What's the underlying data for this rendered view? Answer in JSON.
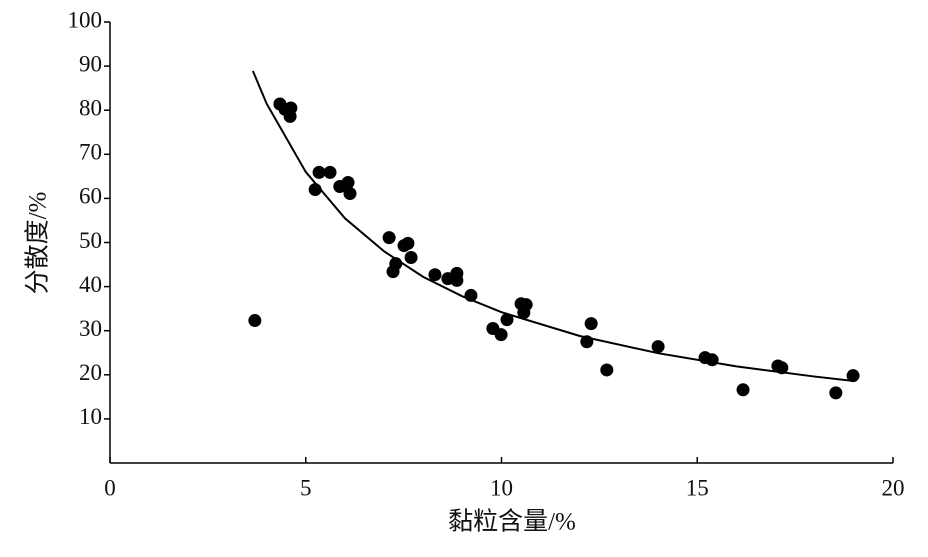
{
  "chart_data": {
    "type": "scatter",
    "x_label": "黏粒含量/%",
    "y_label": "分散度/%",
    "xlim": [
      0,
      20
    ],
    "xticks": [
      0,
      5,
      10,
      15,
      20
    ],
    "ylim": [
      0,
      100
    ],
    "yticks": [
      10,
      20,
      30,
      40,
      50,
      60,
      70,
      80,
      90,
      100
    ],
    "grid": false,
    "series": [
      {
        "color": "#000000",
        "x": [
          3.7,
          4.34,
          4.47,
          4.6,
          4.62,
          5.24,
          5.34,
          5.62,
          5.87,
          6.08,
          6.13,
          7.13,
          7.23,
          7.3,
          7.51,
          7.61,
          7.69,
          8.3,
          8.63,
          8.86,
          8.86,
          9.22,
          9.78,
          9.99,
          10.14,
          10.5,
          10.63,
          10.57,
          12.18,
          12.29,
          12.69,
          14.0,
          15.2,
          15.38,
          16.17,
          17.06,
          17.16,
          18.54,
          18.98
        ],
        "values": [
          32.3,
          81.4,
          80.2,
          78.6,
          80.5,
          62.0,
          65.9,
          65.9,
          62.7,
          63.6,
          61.1,
          51.1,
          43.4,
          45.2,
          49.3,
          49.8,
          46.6,
          42.7,
          41.8,
          43.0,
          41.4,
          38.0,
          30.5,
          29.1,
          32.5,
          36.1,
          35.9,
          34.1,
          27.5,
          31.6,
          21.1,
          26.4,
          23.9,
          23.4,
          16.6,
          22.0,
          21.6,
          15.9,
          19.8
        ]
      }
    ],
    "fit_line": {
      "color": "#000000",
      "x": [
        3.65,
        4,
        5,
        6,
        7,
        8,
        9,
        10,
        12,
        14,
        16,
        18,
        19
      ],
      "values": [
        88.9,
        81.5,
        66.0,
        55.5,
        48.0,
        42.2,
        37.8,
        34.2,
        28.8,
        24.9,
        21.9,
        19.6,
        18.6
      ]
    }
  }
}
